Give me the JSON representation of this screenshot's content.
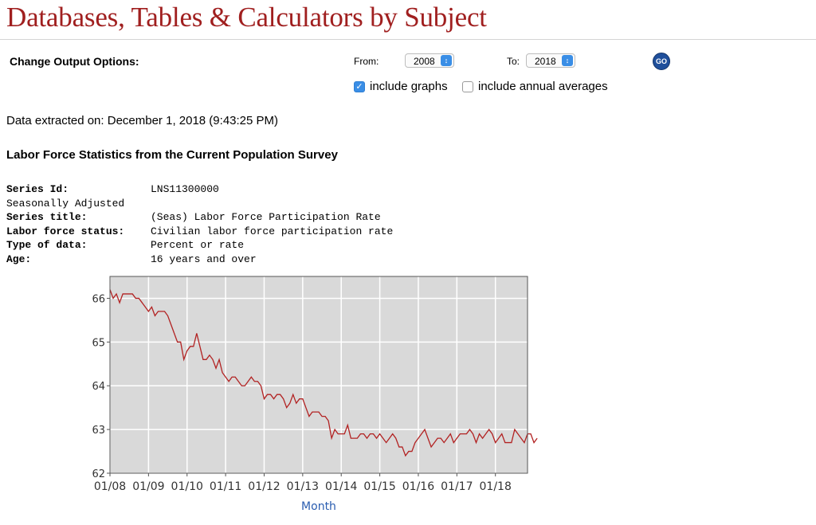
{
  "header": {
    "title": "Databases, Tables & Calculators by Subject"
  },
  "options": {
    "label": "Change Output Options:",
    "from_label": "From:",
    "from_value": "2008",
    "to_label": "To:",
    "to_value": "2018",
    "go_label": "GO",
    "include_graphs": {
      "label": "include graphs",
      "checked": true
    },
    "include_annual": {
      "label": "include annual averages",
      "checked": false
    }
  },
  "extracted": "Data extracted on: December 1, 2018 (9:43:25 PM)",
  "section_title": "Labor Force Statistics from the Current Population Survey",
  "series": {
    "id_label": "Series Id:",
    "id_value": "LNS11300000",
    "adjustment": "Seasonally Adjusted",
    "title_label": "Series title:",
    "title_value": "(Seas) Labor Force Participation Rate",
    "status_label": "Labor force status:",
    "status_value": "Civilian labor force participation rate",
    "type_label": "Type of data:",
    "type_value": "Percent or rate",
    "age_label": "Age:",
    "age_value": "16 years and over"
  },
  "colors": {
    "title": "#a01f1f",
    "line": "#b22222",
    "plot_bg": "#d9d9d9",
    "xlabel": "#2a5db0"
  },
  "chart_data": {
    "type": "line",
    "title": "",
    "xlabel": "Month",
    "ylabel": "",
    "ylim": [
      62,
      66.5
    ],
    "xlim": [
      "2008-01",
      "2018-11"
    ],
    "yticks": [
      62,
      63,
      64,
      65,
      66
    ],
    "xtick_labels": [
      "01/08",
      "01/09",
      "01/10",
      "01/11",
      "01/12",
      "01/13",
      "01/14",
      "01/15",
      "01/16",
      "01/17",
      "01/18"
    ],
    "grid": true,
    "x_start": "2008-01",
    "series": [
      {
        "values": [
          66.2,
          66.0,
          66.1,
          65.9,
          66.1,
          66.1,
          66.1,
          66.1,
          66.0,
          66.0,
          65.9,
          65.8,
          65.7,
          65.8,
          65.6,
          65.7,
          65.7,
          65.7,
          65.6,
          65.4,
          65.2,
          65.0,
          65.0,
          64.6,
          64.8,
          64.9,
          64.9,
          65.2,
          64.9,
          64.6,
          64.6,
          64.7,
          64.6,
          64.4,
          64.6,
          64.3,
          64.2,
          64.1,
          64.2,
          64.2,
          64.1,
          64.0,
          64.0,
          64.1,
          64.2,
          64.1,
          64.1,
          64.0,
          63.7,
          63.8,
          63.8,
          63.7,
          63.8,
          63.8,
          63.7,
          63.5,
          63.6,
          63.8,
          63.6,
          63.7,
          63.7,
          63.5,
          63.3,
          63.4,
          63.4,
          63.4,
          63.3,
          63.3,
          63.2,
          62.8,
          63.0,
          62.9,
          62.9,
          62.9,
          63.1,
          62.8,
          62.8,
          62.8,
          62.9,
          62.9,
          62.8,
          62.9,
          62.9,
          62.8,
          62.9,
          62.8,
          62.7,
          62.8,
          62.9,
          62.8,
          62.6,
          62.6,
          62.4,
          62.5,
          62.5,
          62.7,
          62.8,
          62.9,
          63.0,
          62.8,
          62.6,
          62.7,
          62.8,
          62.8,
          62.7,
          62.8,
          62.9,
          62.7,
          62.8,
          62.9,
          62.9,
          62.9,
          63.0,
          62.9,
          62.7,
          62.9,
          62.8,
          62.9,
          63.0,
          62.9,
          62.7,
          62.8,
          62.9,
          62.7,
          62.7,
          62.7,
          63.0,
          62.9,
          62.8,
          62.7,
          62.9,
          62.9,
          62.7,
          62.8
        ]
      }
    ]
  }
}
